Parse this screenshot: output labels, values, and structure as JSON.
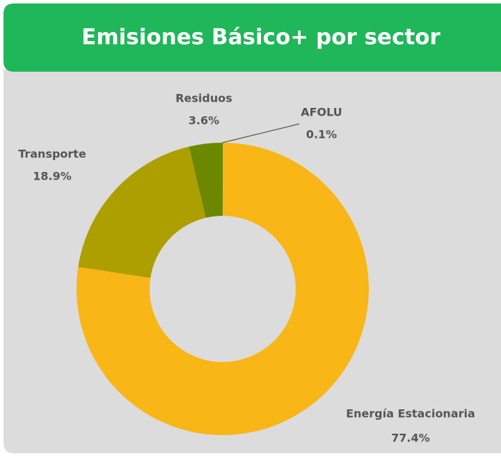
{
  "chart_data": {
    "type": "pie",
    "title": "Emisiones Básico+ por sector",
    "categories": [
      "Energía Estacionaria",
      "Transporte",
      "Residuos",
      "AFOLU"
    ],
    "values": [
      77.4,
      18.9,
      3.6,
      0.1
    ],
    "value_labels": [
      "77.4%",
      "18.9%",
      "3.6%",
      "0.1%"
    ],
    "colors": [
      "#f8b617",
      "#ad9f00",
      "#6c8700",
      "#4d7a00"
    ],
    "donut": true
  }
}
